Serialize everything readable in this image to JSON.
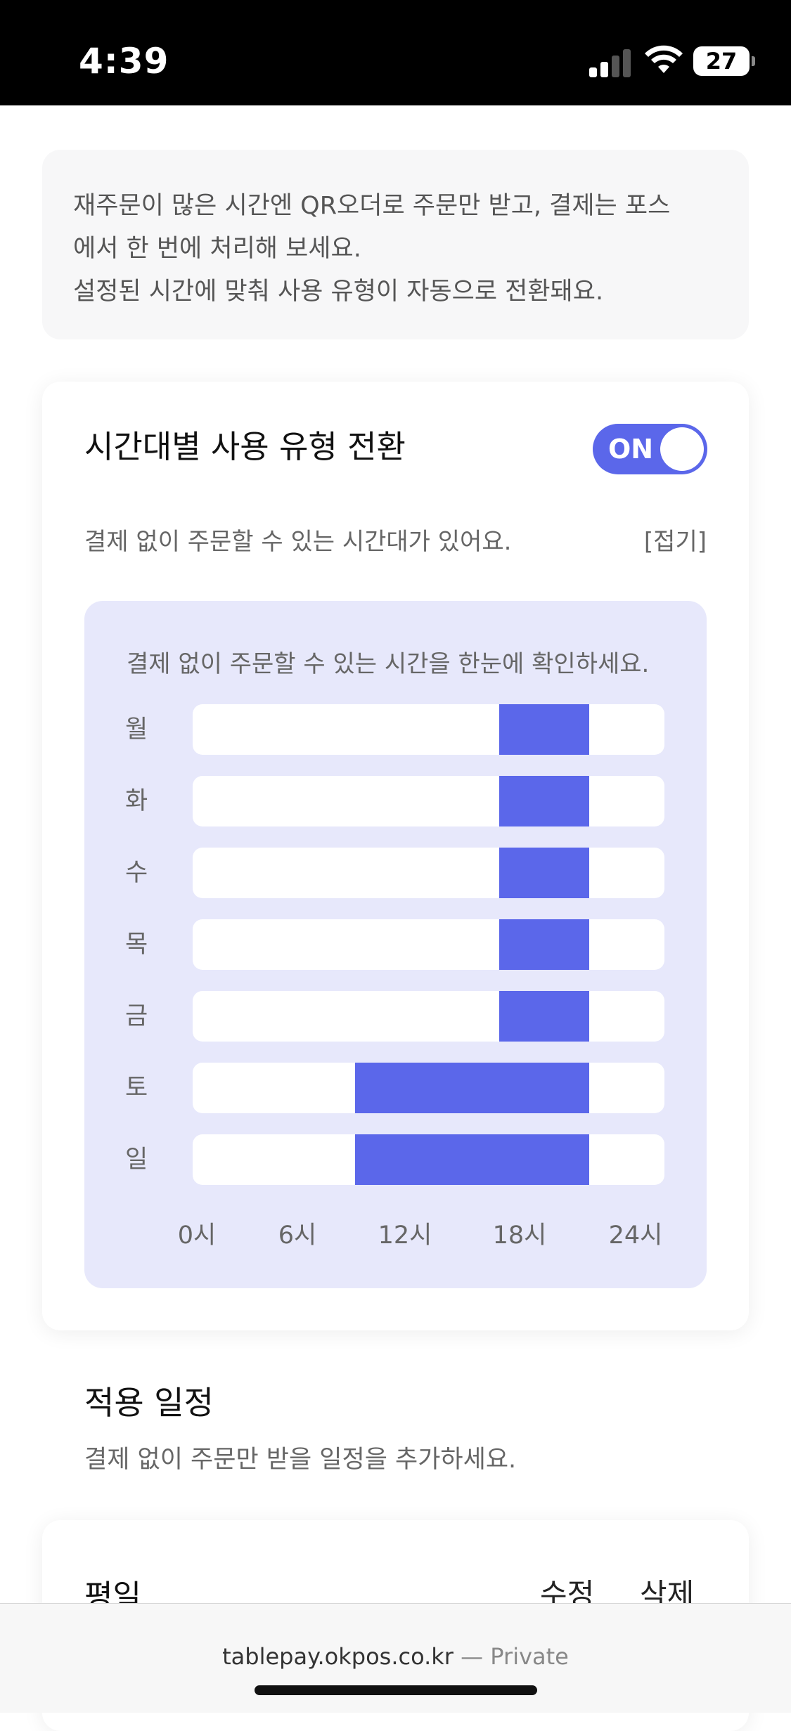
{
  "status_bar": {
    "time": "4:39",
    "battery": "27"
  },
  "info_box": {
    "lines": [
      "재주문이 많은 시간엔 QR오더로 주문만 받고, 결제는 포스",
      "에서 한 번에 처리해 보세요.",
      "설정된 시간에 맞춰 사용 유형이 자동으로 전환돼요."
    ]
  },
  "mode_card": {
    "title": "시간대별 사용 유형 전환",
    "toggle_label": "ON",
    "description": "결제 없이 주문할 수 있는 시간대가 있어요.",
    "fold_link": "[접기]"
  },
  "chart_data": {
    "type": "bar",
    "title": "결제 없이 주문할 수 있는 시간을 한눈에 확인하세요.",
    "orientation": "horizontal-range",
    "x_range": [
      0,
      24
    ],
    "x_ticks": [
      "0시",
      "6시",
      "12시",
      "18시",
      "24시"
    ],
    "categories": [
      "월",
      "화",
      "수",
      "목",
      "금",
      "토",
      "일"
    ],
    "ranges": [
      {
        "day": "월",
        "start": 17,
        "end": 22
      },
      {
        "day": "화",
        "start": 17,
        "end": 22
      },
      {
        "day": "수",
        "start": 17,
        "end": 22
      },
      {
        "day": "목",
        "start": 17,
        "end": 22
      },
      {
        "day": "금",
        "start": 17,
        "end": 22
      },
      {
        "day": "토",
        "start": 9,
        "end": 22
      },
      {
        "day": "일",
        "start": 9,
        "end": 22
      }
    ],
    "fill_color": "#5b67ea",
    "track_color": "#ffffff",
    "background_color": "#e7e8fb"
  },
  "schedule_section": {
    "title": "적용 일정",
    "description": "결제 없이 주문만 받을 일정을 추가하세요.",
    "items": [
      {
        "name": "평일",
        "edit_label": "수정",
        "delete_label": "삭제"
      }
    ]
  },
  "browser_bar": {
    "domain": "tablepay.okpos.co.kr",
    "suffix": "— Private"
  },
  "colors": {
    "accent": "#5b67ea"
  }
}
